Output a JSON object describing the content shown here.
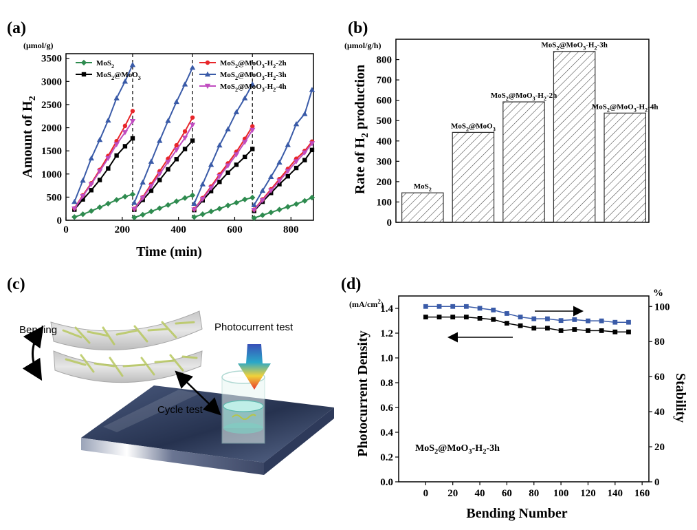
{
  "chart_data": [
    {
      "panel_label": "(a)",
      "type": "line",
      "x_label": "Time (min)",
      "y_label": "Amount of H",
      "y_label_sub": "2",
      "y_unit": "(μmol/g)",
      "xlim": [
        0,
        880
      ],
      "ylim": [
        0,
        3600
      ],
      "x_ticks": [
        "0",
        "200",
        "400",
        "600",
        "800"
      ],
      "y_ticks": [
        "0",
        "500",
        "1000",
        "1500",
        "2000",
        "2500",
        "3000",
        "3500"
      ],
      "cycle_dividers": [
        237,
        450,
        663
      ],
      "series": [
        {
          "name": "MoS2",
          "name_parts": [
            [
              "MoS",
              ""
            ],
            [
              "2",
              "sub"
            ]
          ],
          "color": "#2e8b4f",
          "marker": "diamond",
          "segments": [
            {
              "x": [
                30,
                60,
                90,
                120,
                150,
                180,
                210,
                237
              ],
              "y": [
                70,
                130,
                200,
                280,
                360,
                440,
                510,
                560
              ]
            },
            {
              "x": [
                243,
                273,
                303,
                333,
                363,
                393,
                423,
                450
              ],
              "y": [
                60,
                120,
                190,
                260,
                330,
                410,
                480,
                540
              ]
            },
            {
              "x": [
                456,
                486,
                516,
                546,
                576,
                606,
                636,
                663
              ],
              "y": [
                70,
                130,
                190,
                250,
                320,
                380,
                450,
                490
              ]
            },
            {
              "x": [
                669,
                699,
                729,
                759,
                789,
                819,
                849,
                875
              ],
              "y": [
                50,
                110,
                170,
                230,
                290,
                350,
                420,
                490
              ]
            }
          ]
        },
        {
          "name": "MoS2@MoO3",
          "name_parts": [
            [
              "MoS",
              ""
            ],
            [
              "2",
              "sub"
            ],
            [
              "@MoO",
              ""
            ],
            [
              "3",
              "sub"
            ]
          ],
          "color": "#000000",
          "marker": "square",
          "segments": [
            {
              "x": [
                30,
                60,
                90,
                120,
                150,
                180,
                210,
                237
              ],
              "y": [
                230,
                450,
                650,
                870,
                1120,
                1400,
                1600,
                1770
              ]
            },
            {
              "x": [
                243,
                273,
                303,
                333,
                363,
                393,
                423,
                450
              ],
              "y": [
                230,
                440,
                640,
                870,
                1100,
                1320,
                1540,
                1720
              ]
            },
            {
              "x": [
                456,
                486,
                516,
                546,
                576,
                606,
                636,
                663
              ],
              "y": [
                220,
                430,
                630,
                830,
                1030,
                1200,
                1370,
                1540
              ]
            },
            {
              "x": [
                669,
                699,
                729,
                759,
                789,
                819,
                849,
                875
              ],
              "y": [
                200,
                400,
                590,
                780,
                950,
                1130,
                1300,
                1520
              ]
            }
          ]
        },
        {
          "name": "MoS2@MoO3-H2-2h",
          "name_parts": [
            [
              "MoS",
              ""
            ],
            [
              "2",
              "sub"
            ],
            [
              "@MoO",
              ""
            ],
            [
              "3",
              "sub"
            ],
            [
              "-H",
              ""
            ],
            [
              "2",
              "sub"
            ],
            [
              "-2h",
              ""
            ]
          ],
          "color": "#e8262a",
          "marker": "circle",
          "segments": [
            {
              "x": [
                30,
                60,
                90,
                120,
                150,
                180,
                210,
                237
              ],
              "y": [
                260,
                540,
                800,
                1090,
                1390,
                1710,
                2040,
                2360
              ]
            },
            {
              "x": [
                243,
                273,
                303,
                333,
                363,
                393,
                423,
                450
              ],
              "y": [
                250,
                500,
                780,
                1060,
                1330,
                1620,
                1920,
                2220
              ]
            },
            {
              "x": [
                456,
                486,
                516,
                546,
                576,
                606,
                636,
                663
              ],
              "y": [
                240,
                480,
                730,
                990,
                1230,
                1480,
                1760,
                2030
              ]
            },
            {
              "x": [
                669,
                699,
                729,
                759,
                789,
                819,
                849,
                875
              ],
              "y": [
                230,
                450,
                670,
                890,
                1110,
                1330,
                1500,
                1700
              ]
            }
          ]
        },
        {
          "name": "MoS2@MoO3-H2-3h",
          "name_parts": [
            [
              "MoS",
              ""
            ],
            [
              "2",
              "sub"
            ],
            [
              "@MoO",
              ""
            ],
            [
              "3",
              "sub"
            ],
            [
              "-H",
              ""
            ],
            [
              "2",
              "sub"
            ],
            [
              "-3h",
              ""
            ]
          ],
          "color": "#3a5ba8",
          "marker": "triangle",
          "segments": [
            {
              "x": [
                30,
                60,
                90,
                120,
                150,
                180,
                210,
                237
              ],
              "y": [
                400,
                860,
                1340,
                1740,
                2160,
                2640,
                3000,
                3360
              ]
            },
            {
              "x": [
                243,
                273,
                303,
                333,
                363,
                393,
                423,
                450
              ],
              "y": [
                380,
                820,
                1270,
                1720,
                2150,
                2560,
                2940,
                3300
              ]
            },
            {
              "x": [
                456,
                486,
                516,
                546,
                576,
                606,
                636,
                663
              ],
              "y": [
                360,
                780,
                1200,
                1620,
                1970,
                2340,
                2640,
                2940
              ]
            },
            {
              "x": [
                669,
                699,
                729,
                759,
                789,
                819,
                849,
                875
              ],
              "y": [
                330,
                640,
                940,
                1250,
                1630,
                2080,
                2300,
                2820
              ]
            }
          ]
        },
        {
          "name": "MoS2@MoO3-H2-4h",
          "name_parts": [
            [
              "MoS",
              ""
            ],
            [
              "2",
              "sub"
            ],
            [
              "@MoO",
              ""
            ],
            [
              "3",
              "sub"
            ],
            [
              "-H",
              ""
            ],
            [
              "2",
              "sub"
            ],
            [
              "-4h",
              ""
            ]
          ],
          "color": "#c04dc0",
          "marker": "triangle-down",
          "segments": [
            {
              "x": [
                30,
                60,
                90,
                120,
                150,
                180,
                210,
                237
              ],
              "y": [
                250,
                520,
                780,
                1060,
                1340,
                1640,
                1900,
                2140
              ]
            },
            {
              "x": [
                243,
                273,
                303,
                333,
                363,
                393,
                423,
                450
              ],
              "y": [
                240,
                480,
                740,
                1000,
                1260,
                1520,
                1780,
                2060
              ]
            },
            {
              "x": [
                456,
                486,
                516,
                546,
                576,
                606,
                636,
                663
              ],
              "y": [
                230,
                460,
                700,
                950,
                1180,
                1420,
                1690,
                1950
              ]
            },
            {
              "x": [
                669,
                699,
                729,
                759,
                789,
                819,
                849,
                875
              ],
              "y": [
                220,
                430,
                640,
                850,
                1060,
                1270,
                1460,
                1660
              ]
            }
          ]
        }
      ]
    },
    {
      "panel_label": "(b)",
      "type": "bar",
      "y_label": "Rate of H",
      "y_label_sub": "2",
      "y_label_rest": " production",
      "y_unit": "(μmol/g/h)",
      "ylim": [
        0,
        900
      ],
      "y_ticks": [
        "0",
        "100",
        "200",
        "300",
        "400",
        "500",
        "600",
        "700",
        "800"
      ],
      "categories": [
        "MoS2",
        "MoS2@MoO3",
        "MoS2@MoO3-H2-2h",
        "MoS2@MoO3-H2-3h",
        "MoS2@MoO3-H2-4h"
      ],
      "category_parts": [
        [
          [
            "MoS",
            ""
          ],
          [
            "2",
            "sub"
          ]
        ],
        [
          [
            "MoS",
            ""
          ],
          [
            "2",
            "sub"
          ],
          [
            "@MoO",
            ""
          ],
          [
            "3",
            "sub"
          ]
        ],
        [
          [
            "MoS",
            ""
          ],
          [
            "2",
            "sub"
          ],
          [
            "@MoO",
            ""
          ],
          [
            "3",
            "sub"
          ],
          [
            "-H",
            ""
          ],
          [
            "2",
            "sub"
          ],
          [
            "-2h",
            ""
          ]
        ],
        [
          [
            "MoS",
            ""
          ],
          [
            "2",
            "sub"
          ],
          [
            "@MoO",
            ""
          ],
          [
            "3",
            "sub"
          ],
          [
            "-H",
            ""
          ],
          [
            "2",
            "sub"
          ],
          [
            "-3h",
            ""
          ]
        ],
        [
          [
            "MoS",
            ""
          ],
          [
            "2",
            "sub"
          ],
          [
            "@MoO",
            ""
          ],
          [
            "3",
            "sub"
          ],
          [
            "-H",
            ""
          ],
          [
            "2",
            "sub"
          ],
          [
            "-4h",
            ""
          ]
        ]
      ],
      "values": [
        145,
        442,
        592,
        840,
        537
      ],
      "bar_fill": "hatched"
    },
    {
      "panel_label": "(d)",
      "type": "scatter",
      "x_label": "Bending Number",
      "y_label": "Photocurrent Density",
      "y_unit": "(mA/cm",
      "y_unit_sup": "2",
      "y_unit_close": ")",
      "y2_label": "Stability",
      "y2_unit": "%",
      "xlim": [
        -20,
        165
      ],
      "ylim": [
        0,
        1.5
      ],
      "y2lim": [
        0,
        106
      ],
      "x_ticks": [
        "0",
        "20",
        "40",
        "60",
        "80",
        "100",
        "120",
        "140",
        "160"
      ],
      "y_ticks": [
        "0.0",
        "0.2",
        "0.4",
        "0.6",
        "0.8",
        "1.0",
        "1.2",
        "1.4"
      ],
      "y2_ticks": [
        "0",
        "20",
        "40",
        "60",
        "80",
        "100"
      ],
      "annotation_parts": [
        [
          "MoS",
          ""
        ],
        [
          "2",
          "sub"
        ],
        [
          "@MoO",
          ""
        ],
        [
          "3",
          "sub"
        ],
        [
          "-H",
          ""
        ],
        [
          "2",
          "sub"
        ],
        [
          "-3h",
          ""
        ]
      ],
      "series": [
        {
          "axis": "left",
          "color": "#000000",
          "marker": "square",
          "x": [
            0,
            10,
            20,
            30,
            40,
            50,
            60,
            70,
            80,
            90,
            100,
            110,
            120,
            130,
            140,
            150
          ],
          "y": [
            1.33,
            1.33,
            1.33,
            1.33,
            1.32,
            1.31,
            1.28,
            1.26,
            1.24,
            1.24,
            1.22,
            1.23,
            1.22,
            1.22,
            1.21,
            1.21
          ]
        },
        {
          "axis": "right",
          "color": "#3a5ba8",
          "marker": "square",
          "x": [
            0,
            10,
            20,
            30,
            40,
            50,
            60,
            70,
            80,
            90,
            100,
            110,
            120,
            130,
            140,
            150
          ],
          "y": [
            100,
            100,
            100,
            100,
            99,
            98,
            96,
            94,
            93,
            93,
            92,
            92.5,
            91.8,
            91.8,
            91,
            91
          ]
        }
      ]
    }
  ],
  "illustration": {
    "panel_label": "(c)",
    "labels": {
      "bending": "Bending",
      "photocurrent": "Photocurrent test",
      "cycle": "Cycle test"
    }
  }
}
